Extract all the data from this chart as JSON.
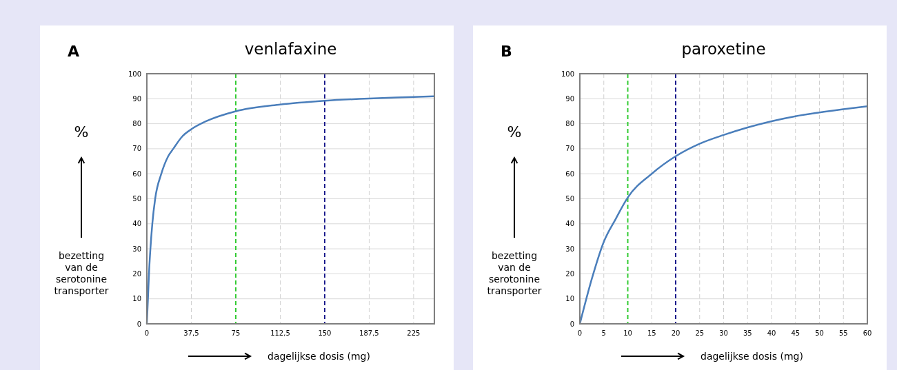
{
  "chart_data": [
    {
      "type": "line",
      "title": "venlafaxine",
      "xlabel": "dagelijkse dosis (mg)",
      "ylabel": "%",
      "annotations": [
        "A",
        "bezetting van de serotonine transporter"
      ],
      "x": [
        0,
        1,
        2,
        3,
        4.6,
        7,
        12.2,
        18,
        22.3,
        30,
        37.5,
        50,
        75,
        112.5,
        150,
        187.5,
        225,
        242.5
      ],
      "series": [
        {
          "color": "#4a7ebb",
          "values": [
            0,
            11,
            22,
            30,
            40,
            50,
            60,
            67,
            70,
            75,
            77.8,
            81,
            85,
            87.7,
            89.2,
            90.1,
            90.7,
            91
          ]
        }
      ],
      "xlim": [
        0,
        242.5
      ],
      "xticks": [
        0,
        {
          "value": 37.5,
          "label": "37,5"
        },
        75,
        {
          "value": 112.5,
          "label": "112,5"
        },
        150,
        {
          "value": 187.5,
          "label": "187,5"
        },
        225
      ],
      "ylim": [
        0,
        100
      ],
      "yticks": [
        0,
        10,
        20,
        30,
        40,
        50,
        60,
        70,
        80,
        90,
        100
      ],
      "grid": true,
      "marker": "none",
      "line_style": "solid",
      "ref_lines": [
        {
          "axis": "x",
          "value": 75,
          "color": "#33cc33",
          "line_style": "dashed"
        },
        {
          "axis": "x",
          "value": 150,
          "color": "#1a1a8c",
          "line_style": "dashed"
        }
      ]
    },
    {
      "type": "line",
      "title": "paroxetine",
      "xlabel": "dagelijkse dosis (mg)",
      "ylabel": "%",
      "annotations": [
        "B",
        "bezetting van de serotonine transporter"
      ],
      "x": [
        0,
        2.5,
        5,
        7.5,
        10,
        15,
        20,
        25,
        30,
        35,
        40,
        45,
        50,
        55,
        60
      ],
      "series": [
        {
          "color": "#4a7ebb",
          "values": [
            0,
            18,
            32.8,
            42,
            50.5,
            60,
            67,
            72,
            75.5,
            78.5,
            81,
            83,
            84.5,
            85.8,
            87
          ]
        }
      ],
      "xlim": [
        0,
        60
      ],
      "xticks": [
        0,
        5,
        10,
        15,
        20,
        25,
        30,
        35,
        40,
        45,
        50,
        55,
        60
      ],
      "ylim": [
        0,
        100
      ],
      "yticks": [
        0,
        10,
        20,
        30,
        40,
        50,
        60,
        70,
        80,
        90,
        100
      ],
      "grid": true,
      "marker": "none",
      "line_style": "solid",
      "ref_lines": [
        {
          "axis": "x",
          "value": 10,
          "color": "#33cc33",
          "line_style": "dashed"
        },
        {
          "axis": "x",
          "value": 20,
          "color": "#1a1a8c",
          "line_style": "dashed"
        }
      ]
    }
  ]
}
